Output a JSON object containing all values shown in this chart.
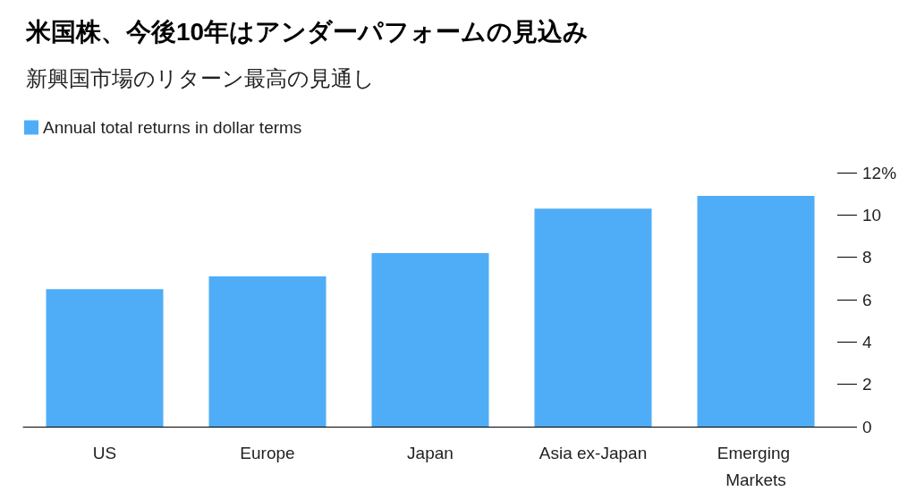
{
  "chart_data": {
    "type": "bar",
    "title": "米国株、今後10年はアンダーパフォームの見込み",
    "subtitle": "新興国市場のリターン最高の見通し",
    "categories": [
      "US",
      "Europe",
      "Japan",
      "Asia ex-Japan",
      "Emerging Markets"
    ],
    "series": [
      {
        "name": "Annual total returns in dollar terms",
        "color": "#4fadf7",
        "values": [
          6.5,
          7.1,
          8.2,
          10.3,
          10.9
        ]
      }
    ],
    "ylim": [
      0,
      12
    ],
    "yticks": [
      0,
      2,
      4,
      6,
      8,
      10,
      {
        "value": 12,
        "label": "12%"
      }
    ],
    "grid": false,
    "legend": "top left"
  }
}
